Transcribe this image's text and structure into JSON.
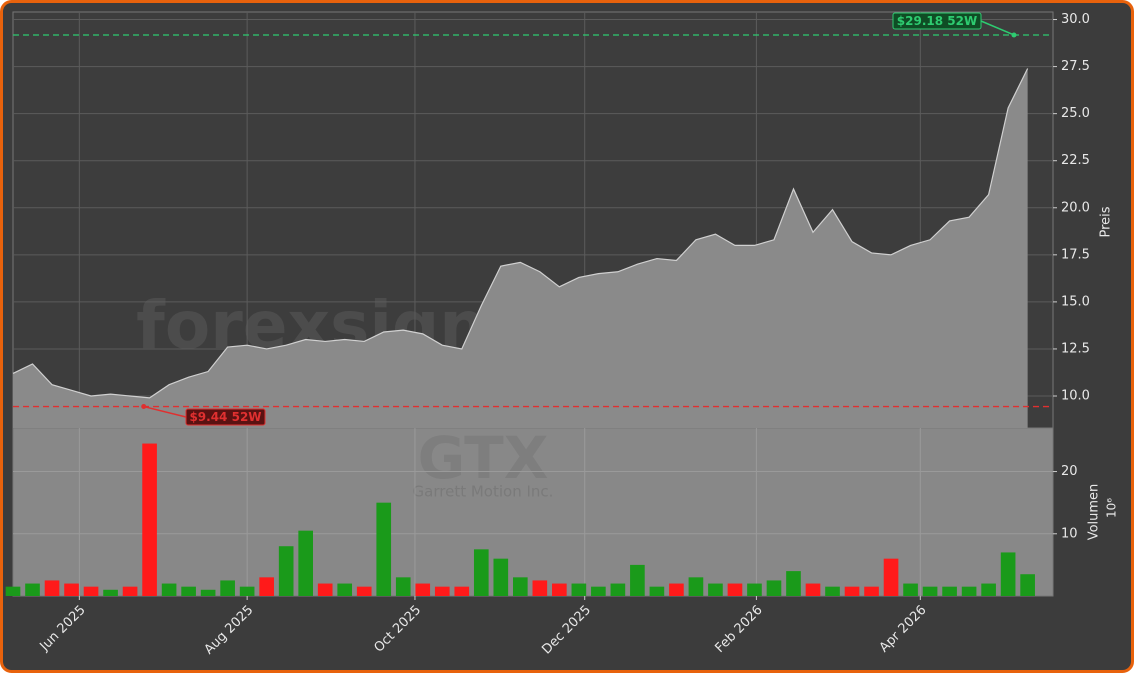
{
  "chart_data": [
    {
      "type": "area",
      "watermark": "forexsignale.trade",
      "ylabel": "Preis",
      "categories": [
        null,
        null,
        null,
        null,
        null,
        null,
        null,
        null,
        null,
        null,
        null,
        null,
        null,
        null,
        null,
        null,
        null,
        null,
        null,
        null,
        null,
        null,
        null,
        null,
        null,
        null,
        null,
        null,
        null,
        null,
        null,
        null,
        null,
        null,
        null,
        null,
        null,
        null,
        null,
        null,
        null,
        null,
        null,
        null,
        null,
        null,
        null,
        null,
        null,
        null,
        null,
        null,
        null
      ],
      "values": [
        11.2,
        11.7,
        10.6,
        10.3,
        10.0,
        10.1,
        10.0,
        9.9,
        10.6,
        11.0,
        11.3,
        12.6,
        12.7,
        12.5,
        12.7,
        13.0,
        12.9,
        13.0,
        12.9,
        13.4,
        13.5,
        13.3,
        12.7,
        12.5,
        14.8,
        16.9,
        17.1,
        16.6,
        15.8,
        16.3,
        16.5,
        16.6,
        17.0,
        17.3,
        17.2,
        18.3,
        18.6,
        18.0,
        18.0,
        18.3,
        21.0,
        18.7,
        19.9,
        18.2,
        17.6,
        17.5,
        18.0,
        18.3,
        19.3,
        19.5,
        20.7,
        25.3,
        27.4
      ],
      "color": "#8a8a8a",
      "xlim": [
        0,
        53.3
      ],
      "xticks": [
        {
          "value": 3.4,
          "label": "Jun 2025"
        },
        {
          "value": 12.0,
          "label": "Aug 2025"
        },
        {
          "value": 20.6,
          "label": "Oct 2025"
        },
        {
          "value": 29.3,
          "label": "Dec 2025"
        },
        {
          "value": 38.1,
          "label": "Feb 2026"
        },
        {
          "value": 46.5,
          "label": "Apr 2026"
        }
      ],
      "ylim": [
        8.3,
        30.4
      ],
      "yticks": [
        {
          "value": 10,
          "label": "10.0"
        },
        12.5,
        {
          "value": 15,
          "label": "15.0"
        },
        17.5,
        {
          "value": 20,
          "label": "20.0"
        },
        22.5,
        {
          "value": 25,
          "label": "25.0"
        },
        27.5,
        {
          "value": 30,
          "label": "30.0"
        }
      ],
      "grid": true,
      "high": {
        "value": 29.18,
        "label": "$29.18 52W",
        "color": "#2ecc71"
      },
      "low": {
        "value": 9.44,
        "label": "$9.44 52W",
        "color": "#e03030"
      }
    },
    {
      "type": "bar",
      "watermark": "GTX",
      "subtitle": "Garrett Motion Inc.",
      "ylabel": "Volumen",
      "unit": "10⁶",
      "values": [
        1.5,
        2,
        2.5,
        2,
        1.5,
        1,
        1.5,
        24.5,
        2,
        1.5,
        1,
        2.5,
        1.5,
        3,
        8,
        10.5,
        2,
        2,
        1.5,
        15,
        3,
        2,
        1.5,
        1.5,
        7.5,
        6,
        3,
        2.5,
        2,
        2,
        1.5,
        2,
        5,
        1.5,
        2,
        3,
        2,
        2,
        2,
        2.5,
        4,
        2,
        1.5,
        1.5,
        1.5,
        6,
        2,
        1.5,
        1.5,
        1.5,
        2,
        7,
        3.5
      ],
      "up_color": "#1a9a1a",
      "down_color": "#ff1a1a",
      "ylim": [
        0,
        27
      ],
      "yticks": [
        10,
        20
      ],
      "grid": true
    }
  ]
}
